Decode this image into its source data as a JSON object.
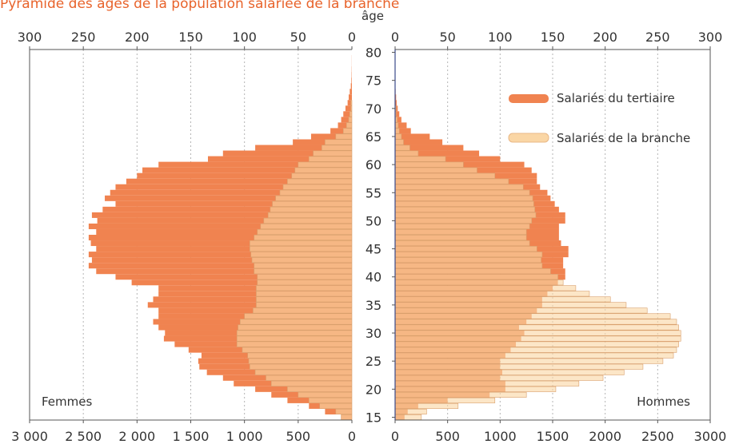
{
  "chart_data": {
    "type": "bar",
    "orientation": "population-pyramid",
    "title": "Pyramide des âges de la population salariée de la branche",
    "center_axis_label": "âge",
    "left_panel_label": "Femmes",
    "right_panel_label": "Hommes",
    "ages": [
      15,
      16,
      17,
      18,
      19,
      20,
      21,
      22,
      23,
      24,
      25,
      26,
      27,
      28,
      29,
      30,
      31,
      32,
      33,
      34,
      35,
      36,
      37,
      38,
      39,
      40,
      41,
      42,
      43,
      44,
      45,
      46,
      47,
      48,
      49,
      50,
      51,
      52,
      53,
      54,
      55,
      56,
      57,
      58,
      59,
      60,
      61,
      62,
      63,
      64,
      65,
      66,
      67,
      68,
      69,
      70,
      71,
      72,
      73,
      74,
      75,
      76,
      77,
      78,
      79,
      80
    ],
    "age_ticks": [
      15,
      20,
      25,
      30,
      35,
      40,
      45,
      50,
      55,
      60,
      65,
      70,
      75,
      80
    ],
    "axes": {
      "branche_axis_ticks": [
        "300",
        "250",
        "200",
        "150",
        "100",
        "50",
        "0"
      ],
      "branche_axis_ticks_right": [
        "0",
        "50",
        "100",
        "150",
        "200",
        "250",
        "300"
      ],
      "tertiaire_axis_ticks_left": [
        "3 000",
        "2 500",
        "2 000",
        "1 500",
        "1 000",
        "500",
        "0"
      ],
      "tertiaire_axis_ticks_right": [
        "0",
        "500",
        "1000",
        "1500",
        "2000",
        "2500",
        "3000"
      ],
      "branche_xlim": [
        0,
        300
      ],
      "tertiaire_xlim": [
        0,
        3000
      ],
      "grid": "vertical dashed"
    },
    "legend_position": "top-right",
    "series": [
      {
        "name": "Salariés du tertiaire",
        "color": "#f08350",
        "scale": "tertiaire",
        "femmes": [
          100,
          250,
          400,
          600,
          750,
          900,
          1100,
          1200,
          1350,
          1420,
          1430,
          1400,
          1520,
          1650,
          1750,
          1740,
          1800,
          1850,
          1800,
          1800,
          1900,
          1850,
          1800,
          1800,
          2050,
          2200,
          2380,
          2450,
          2420,
          2450,
          2380,
          2430,
          2450,
          2380,
          2450,
          2370,
          2420,
          2320,
          2200,
          2300,
          2250,
          2200,
          2100,
          2000,
          1950,
          1800,
          1340,
          1200,
          900,
          550,
          380,
          200,
          130,
          100,
          80,
          60,
          40,
          30,
          20,
          10,
          5,
          3,
          2,
          1,
          1,
          0
        ],
        "hommes": [
          90,
          120,
          220,
          500,
          900,
          1050,
          1050,
          1000,
          1020,
          1000,
          1000,
          1050,
          1100,
          1150,
          1200,
          1230,
          1180,
          1250,
          1300,
          1350,
          1400,
          1400,
          1450,
          1500,
          1550,
          1620,
          1620,
          1600,
          1600,
          1650,
          1650,
          1580,
          1560,
          1560,
          1560,
          1620,
          1620,
          1560,
          1520,
          1480,
          1450,
          1380,
          1350,
          1350,
          1300,
          1230,
          1000,
          800,
          650,
          450,
          330,
          150,
          110,
          60,
          40,
          25,
          15,
          10,
          5,
          3,
          2,
          1,
          1,
          0,
          0,
          0
        ]
      },
      {
        "name": "Salariés de la branche",
        "color": "#fad6a5",
        "scale": "branche",
        "femmes": [
          10,
          15,
          30,
          40,
          50,
          60,
          75,
          80,
          90,
          95,
          96,
          97,
          102,
          107,
          107,
          107,
          106,
          104,
          100,
          92,
          89,
          89,
          89,
          89,
          88,
          88,
          91,
          91,
          93,
          94,
          95,
          95,
          91,
          88,
          85,
          82,
          78,
          76,
          74,
          71,
          67,
          64,
          60,
          56,
          53,
          50,
          40,
          36,
          28,
          25,
          15,
          8,
          5,
          3,
          2,
          1,
          1,
          0,
          0,
          0,
          0,
          0,
          0,
          0,
          0,
          0
        ],
        "hommes": [
          25,
          30,
          60,
          95,
          125,
          153,
          175,
          198,
          218,
          236,
          255,
          265,
          268,
          270,
          272,
          272,
          270,
          268,
          262,
          240,
          220,
          205,
          185,
          172,
          160,
          155,
          148,
          140,
          139,
          140,
          135,
          128,
          125,
          125,
          128,
          130,
          134,
          133,
          132,
          131,
          128,
          122,
          108,
          95,
          78,
          65,
          48,
          22,
          14,
          8,
          6,
          4,
          3,
          2,
          1,
          1,
          0,
          0,
          0,
          0,
          0,
          0,
          0,
          0,
          0,
          0
        ]
      }
    ]
  }
}
